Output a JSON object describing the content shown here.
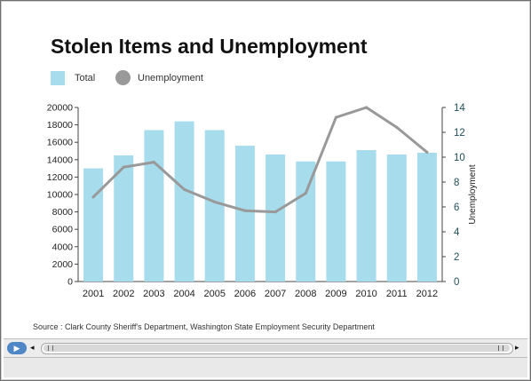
{
  "chart_data": {
    "type": "bar",
    "title": "Stolen Items and Unemployment",
    "categories": [
      "2001",
      "2002",
      "2003",
      "2004",
      "2005",
      "2006",
      "2007",
      "2008",
      "2009",
      "2010",
      "2011",
      "2012"
    ],
    "series": [
      {
        "name": "Total",
        "type": "bar",
        "axis": "left",
        "color": "#a6dceb",
        "values": [
          13000,
          14500,
          17400,
          18400,
          17400,
          15600,
          14600,
          13800,
          13800,
          15100,
          14600,
          14800
        ]
      },
      {
        "name": "Unemployment",
        "type": "line",
        "axis": "right",
        "color": "#999999",
        "values": [
          6.8,
          9.2,
          9.6,
          7.4,
          6.4,
          5.7,
          5.6,
          7.1,
          13.2,
          14.0,
          12.4,
          10.4
        ]
      }
    ],
    "xlabel": "",
    "ylabel_left": "",
    "ylabel_right": "Unemployment",
    "ylim_left": [
      0,
      20000
    ],
    "ylim_right": [
      0,
      14
    ],
    "yticks_left": [
      "0",
      "2000",
      "4000",
      "6000",
      "8000",
      "10000",
      "12000",
      "14000",
      "16000",
      "18000",
      "20000"
    ],
    "yticks_right": [
      "0",
      "2",
      "4",
      "6",
      "8",
      "10",
      "12",
      "14"
    ],
    "grid": false,
    "legend_position": "top-left",
    "source": "Source : Clark County Sheriff's Department, Washington State Employment Security Department"
  },
  "player": {
    "play_icon": "play-icon",
    "left_arrow": "◂",
    "right_arrow": "▸"
  }
}
